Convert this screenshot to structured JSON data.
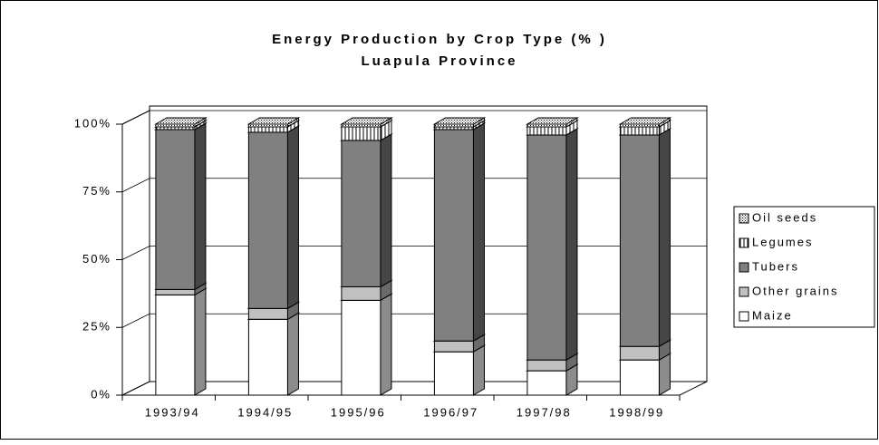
{
  "chart_data": {
    "type": "stacked_bar_3d",
    "title": "Energy Production by Crop Type (% )",
    "subtitle": "Luapula Province",
    "categories": [
      "1993/94",
      "1994/95",
      "1995/96",
      "1996/97",
      "1997/98",
      "1998/99"
    ],
    "series": [
      {
        "name": "Maize",
        "color": "#ffffff",
        "pattern": "solid",
        "values": [
          37,
          28,
          35,
          16,
          9,
          13
        ]
      },
      {
        "name": "Other grains",
        "color": "#c0c0c0",
        "pattern": "solid",
        "values": [
          2,
          4,
          5,
          4,
          4,
          5
        ]
      },
      {
        "name": "Tubers",
        "color": "#808080",
        "pattern": "solid",
        "values": [
          59,
          65,
          54,
          78,
          83,
          78
        ]
      },
      {
        "name": "Legumes",
        "color": "#ffffff",
        "pattern": "vertical",
        "values": [
          1,
          2,
          5,
          1,
          3,
          3
        ]
      },
      {
        "name": "Oil seeds",
        "color": "#ffffff",
        "pattern": "dots",
        "values": [
          1,
          1,
          1,
          1,
          1,
          1
        ]
      }
    ],
    "ylim": [
      0,
      100
    ],
    "yticks": [
      {
        "value": 0,
        "label": "0%"
      },
      {
        "value": 25,
        "label": "25%"
      },
      {
        "value": 50,
        "label": "50%"
      },
      {
        "value": 75,
        "label": "75%"
      },
      {
        "value": 100,
        "label": "100%"
      }
    ],
    "grid": true,
    "legend": "right"
  }
}
